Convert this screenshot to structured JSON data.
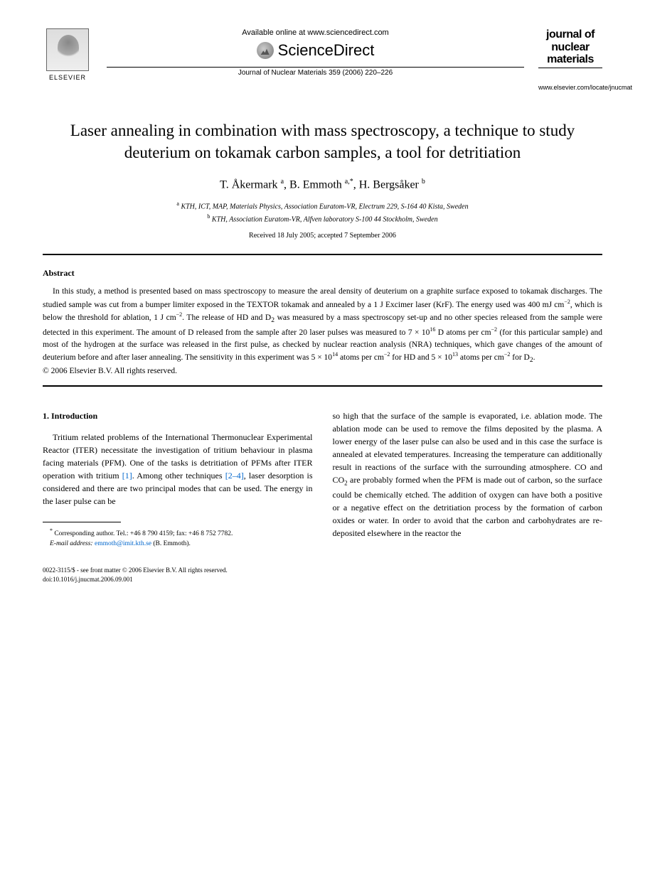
{
  "header": {
    "elsevier_label": "ELSEVIER",
    "available_online": "Available online at www.sciencedirect.com",
    "scidirect_brand": "ScienceDirect",
    "journal_ref": "Journal of Nuclear Materials 359 (2006) 220–226",
    "journal_logo_line1": "journal of",
    "journal_logo_line2": "nuclear",
    "journal_logo_line3": "materials",
    "journal_url": "www.elsevier.com/locate/jnucmat"
  },
  "title": "Laser annealing in combination with mass spectroscopy, a technique to study deuterium on tokamak carbon samples, a tool for detritiation",
  "authors_html": "T. Åkermark <sup>a</sup>, B. Emmoth <sup>a,*</sup>, H. Bergsåker <sup>b</sup>",
  "affiliations": {
    "a": "KTH, ICT, MAP, Materials Physics, Association Euratom-VR, Electrum 229, S-164 40 Kista, Sweden",
    "b": "KTH, Association Euratom-VR, Alfven laboratory S-100 44 Stockholm, Sweden"
  },
  "dates": "Received 18 July 2005; accepted 7 September 2006",
  "abstract": {
    "heading": "Abstract",
    "text_html": "In this study, a method is presented based on mass spectroscopy to measure the areal density of deuterium on a graphite surface exposed to tokamak discharges. The studied sample was cut from a bumper limiter exposed in the TEXTOR tokamak and annealed by a 1 J Excimer laser (KrF). The energy used was 400 mJ cm<sup>−2</sup>, which is below the threshold for ablation, 1 J cm<sup>−2</sup>. The release of HD and D<sub>2</sub> was measured by a mass spectroscopy set-up and no other species released from the sample were detected in this experiment. The amount of D released from the sample after 20 laser pulses was measured to 7 × 10<sup>16</sup> D atoms per cm<sup>−2</sup> (for this particular sample) and most of the hydrogen at the surface was released in the first pulse, as checked by nuclear reaction analysis (NRA) techniques, which gave changes of the amount of deuterium before and after laser annealing. The sensitivity in this experiment was 5 × 10<sup>14</sup> atoms per cm<sup>−2</sup> for HD and 5 × 10<sup>13</sup> atoms per cm<sup>−2</sup> for D<sub>2</sub>.",
    "copyright": "© 2006 Elsevier B.V. All rights reserved."
  },
  "section1": {
    "heading": "1. Introduction",
    "col1_html": "Tritium related problems of the International Thermonuclear Experimental Reactor (ITER) necessitate the investigation of tritium behaviour in plasma facing materials (PFM). One of the tasks is detritiation of PFMs after ITER operation with tritium <span class=\"ref-link\">[1]</span>. Among other techniques <span class=\"ref-link\">[2–4]</span>, laser desorption is considered and there are two principal modes that can be used. The energy in the laser pulse can be",
    "col2_html": "so high that the surface of the sample is evaporated, i.e. ablation mode. The ablation mode can be used to remove the films deposited by the plasma. A lower energy of the laser pulse can also be used and in this case the surface is annealed at elevated temperatures. Increasing the temperature can additionally result in reactions of the surface with the surrounding atmosphere. CO and CO<sub>2</sub> are probably formed when the PFM is made out of carbon, so the surface could be chemically etched. The addition of oxygen can have both a positive or a negative effect on the detritiation process by the formation of carbon oxides or water. In order to avoid that the carbon and carbohydrates are re-deposited elsewhere in the reactor the"
  },
  "footnote": {
    "corr": "Corresponding author. Tel.: +46 8 790 4159; fax: +46 8 752 7782.",
    "email_label": "E-mail address:",
    "email": "emmoth@imit.kth.se",
    "email_author": "(B. Emmoth)."
  },
  "footer": {
    "line1": "0022-3115/$ - see front matter © 2006 Elsevier B.V. All rights reserved.",
    "line2": "doi:10.1016/j.jnucmat.2006.09.001"
  }
}
